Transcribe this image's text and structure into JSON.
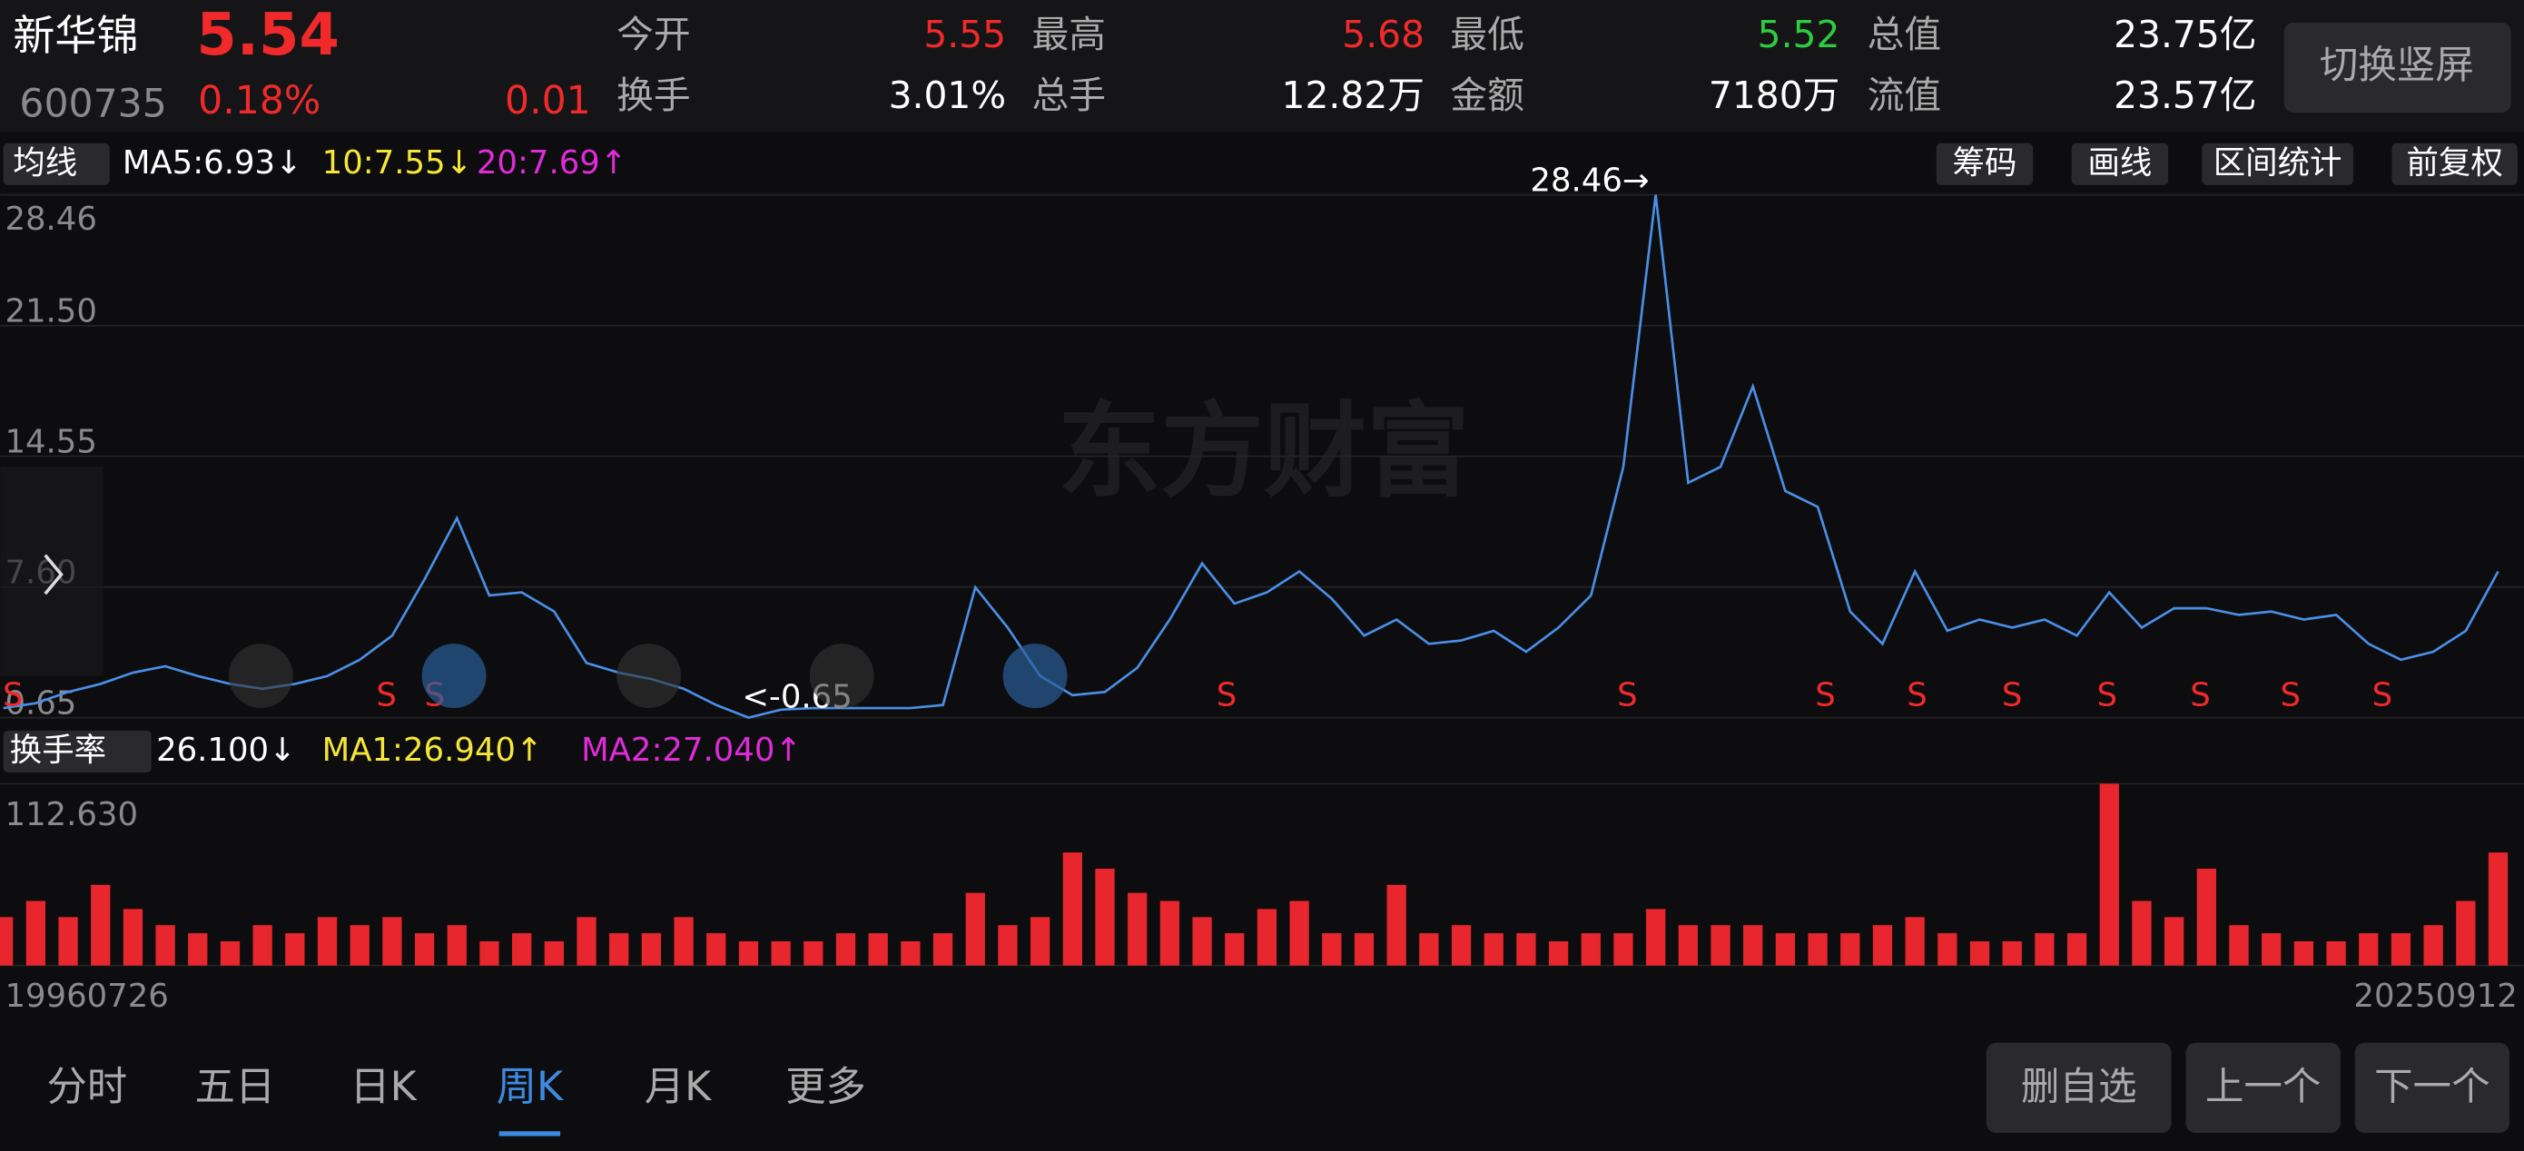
{
  "header": {
    "name": "新华锦",
    "price": "5.54",
    "code": "600735",
    "change_pct": "0.18%",
    "change": "0.01",
    "stats": [
      [
        "今开",
        "5.55"
      ],
      [
        "最高",
        "5.68"
      ],
      [
        "最低",
        "5.52"
      ],
      [
        "总值",
        "23.75亿"
      ],
      [
        "换手",
        "3.01%"
      ],
      [
        "总手",
        "12.82万"
      ],
      [
        "金额",
        "7180万"
      ],
      [
        "流值",
        "23.57亿"
      ]
    ],
    "switch_button": "切换竖屏"
  },
  "ma_bar": {
    "selector": "均线",
    "ma5": "MA5:6.93↓",
    "ma10": "10:7.55↓",
    "ma20": "20:7.69↑",
    "buttons": [
      "筹码",
      "画线",
      "区间统计",
      "前复权"
    ]
  },
  "watermark": "东方财富",
  "price_chart": {
    "type": "line",
    "color": "#4a8fe7",
    "ylim": [
      0.65,
      28.46
    ],
    "yticks": [
      0.65,
      {
        "value": 7.6,
        "label": "7.60"
      },
      14.55,
      {
        "value": 21.5,
        "label": "21.50"
      },
      28.46
    ],
    "values": [
      1.16,
      1.42,
      2.02,
      2.45,
      3.05,
      3.39,
      2.87,
      2.45,
      2.19,
      2.45,
      2.87,
      3.73,
      5.01,
      8.01,
      11.26,
      7.15,
      7.32,
      6.3,
      3.56,
      3.05,
      2.7,
      2.19,
      1.33,
      0.65,
      1.08,
      1.16,
      1.16,
      1.16,
      1.16,
      1.33,
      7.58,
      5.44,
      2.87,
      1.85,
      2.02,
      3.3,
      5.87,
      8.86,
      6.72,
      7.32,
      8.43,
      6.98,
      5.01,
      5.87,
      4.58,
      4.76,
      5.27,
      4.16,
      5.44,
      7.15,
      13.99,
      28.46,
      13.14,
      13.99,
      18.27,
      12.71,
      11.86,
      6.3,
      4.58,
      8.43,
      5.27,
      5.87,
      5.44,
      5.87,
      5.01,
      7.32,
      5.44,
      6.47,
      6.47,
      6.12,
      6.3,
      5.87,
      6.12,
      4.58,
      3.73,
      4.16,
      5.27,
      8.43
    ],
    "max_label": "28.46→",
    "min_label": "<-0.65",
    "signal_label": "S"
  },
  "turnover_bar": {
    "selector": "换手率",
    "current": "26.100↓",
    "ma1": "MA1:26.940↑",
    "ma2": "MA2:27.040↑"
  },
  "turnover_chart": {
    "type": "bar",
    "color": "#e8262d",
    "ylim": [
      0,
      112.63
    ],
    "yticks": [
      {
        "value": 112.63,
        "label": "112.630"
      }
    ],
    "values": [
      30,
      40,
      30,
      50,
      35,
      25,
      20,
      15,
      25,
      20,
      30,
      25,
      30,
      20,
      25,
      15,
      20,
      15,
      30,
      20,
      20,
      30,
      20,
      15,
      15,
      15,
      20,
      20,
      15,
      20,
      45,
      25,
      30,
      70,
      60,
      45,
      40,
      30,
      20,
      35,
      40,
      20,
      20,
      50,
      20,
      25,
      20,
      20,
      15,
      20,
      20,
      35,
      25,
      25,
      25,
      20,
      20,
      20,
      25,
      30,
      20,
      15,
      15,
      20,
      20,
      112.63,
      40,
      30,
      60,
      25,
      20,
      15,
      15,
      20,
      20,
      25,
      40,
      70
    ]
  },
  "date_range": [
    "19960726",
    "20250912"
  ],
  "tabs": [
    "分时",
    "五日",
    "日K",
    "周K",
    "月K",
    "更多"
  ],
  "bottom_buttons": [
    "删自选",
    "上一个",
    "下一个"
  ]
}
